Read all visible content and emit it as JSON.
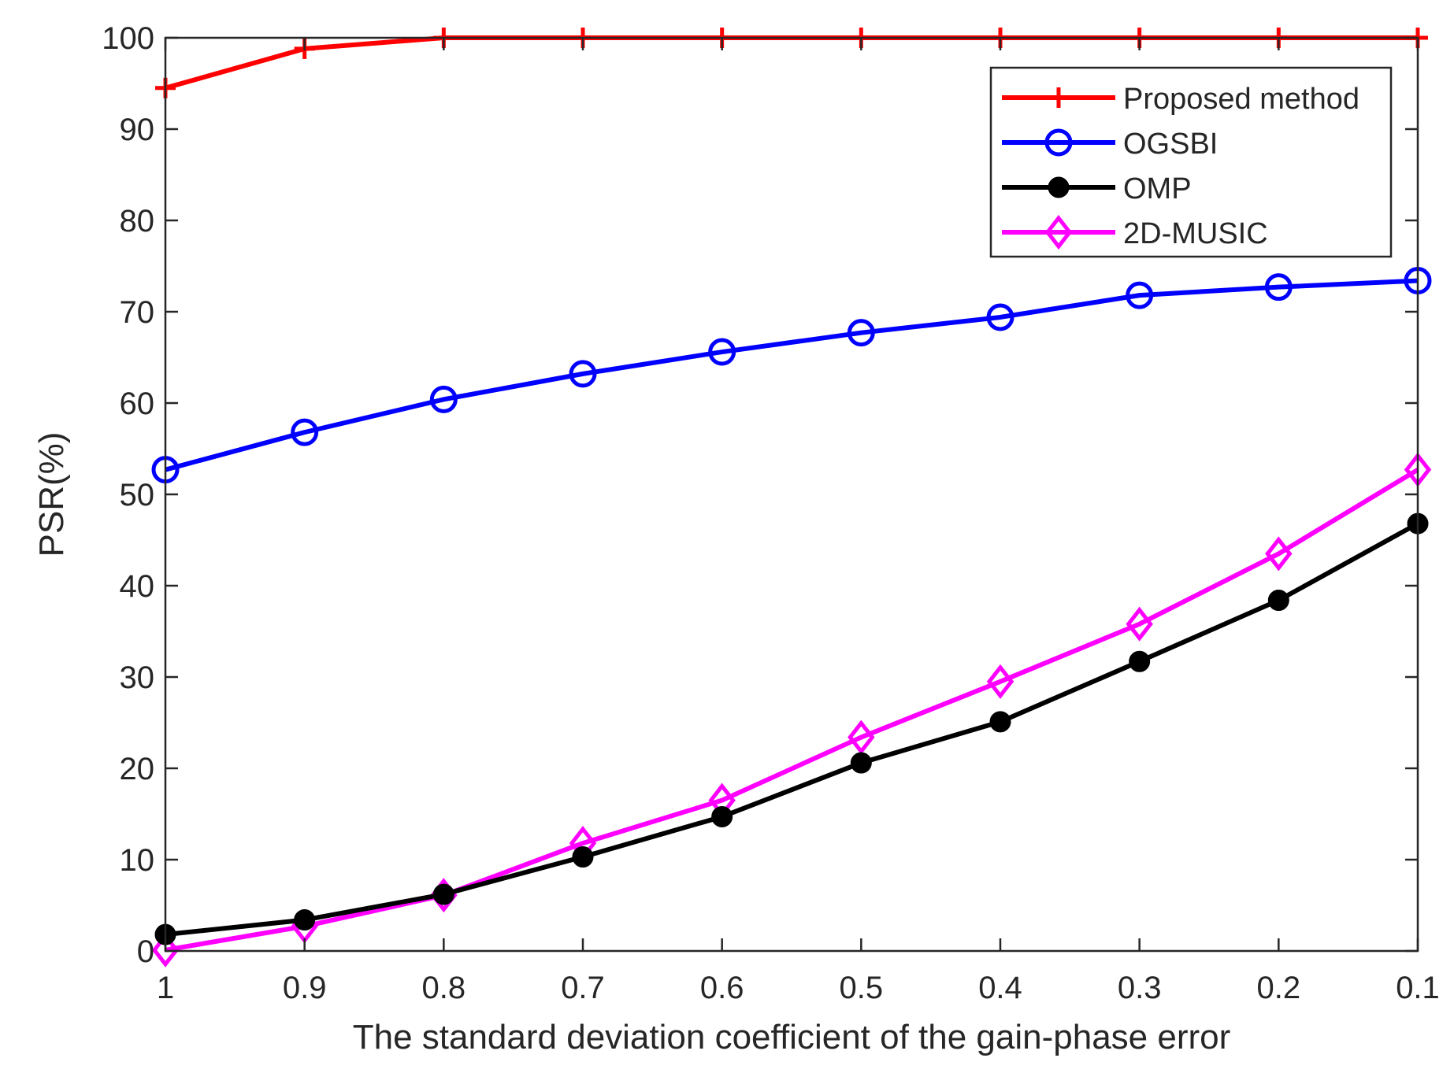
{
  "chart_data": {
    "type": "line",
    "title": "",
    "xlabel": "The standard deviation coefficient of the gain-phase error",
    "ylabel": "PSR(%)",
    "categories": [
      "1",
      "0.9",
      "0.8",
      "0.7",
      "0.6",
      "0.5",
      "0.4",
      "0.3",
      "0.2",
      "0.1"
    ],
    "yticks": [
      "0",
      "10",
      "20",
      "30",
      "40",
      "50",
      "60",
      "70",
      "80",
      "90",
      "100"
    ],
    "ylim": [
      0,
      100
    ],
    "grid": false,
    "legend_position": "top-right",
    "series": [
      {
        "name": "Proposed method",
        "color": "#ff0000",
        "marker": "plus",
        "values": [
          94.5,
          98.8,
          100,
          100,
          100,
          100,
          100,
          100,
          100,
          100
        ]
      },
      {
        "name": "OGSBI",
        "color": "#0000ff",
        "marker": "circle",
        "values": [
          52.7,
          56.8,
          60.4,
          63.2,
          65.6,
          67.7,
          69.4,
          71.8,
          72.7,
          73.4
        ]
      },
      {
        "name": "OMP",
        "color": "#000000",
        "marker": "filled-circle",
        "values": [
          1.8,
          3.4,
          6.2,
          10.3,
          14.7,
          20.6,
          25.1,
          31.7,
          38.4,
          46.8
        ]
      },
      {
        "name": "2D-MUSIC",
        "color": "#ff00ff",
        "marker": "diamond",
        "values": [
          0.1,
          2.7,
          6.1,
          11.8,
          16.5,
          23.4,
          29.5,
          35.8,
          43.5,
          52.7
        ]
      }
    ]
  }
}
